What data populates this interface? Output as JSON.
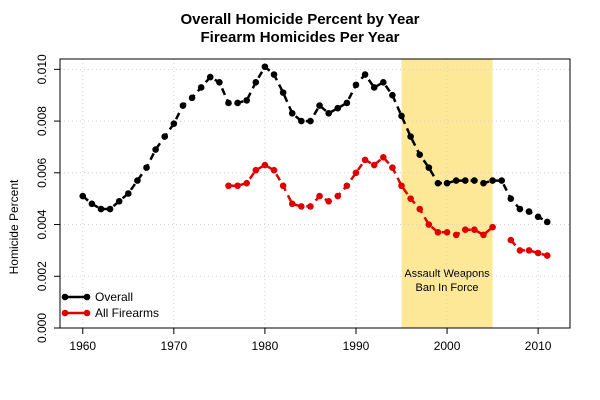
{
  "chart_data": {
    "type": "line",
    "title": "Overall Homicide Percent by Year",
    "subtitle": "Firearm Homicides Per Year",
    "ylabel": "Homicide Percent",
    "xlim": [
      1957.5,
      2013.5
    ],
    "ylim": [
      0,
      0.0104
    ],
    "xticks": [
      1960,
      1970,
      1980,
      1990,
      2000,
      2010
    ],
    "yticks": [
      0.0,
      0.002,
      0.004,
      0.006,
      0.008,
      0.01
    ],
    "grid": true,
    "legend_position": "bottom-left",
    "annotation": {
      "line1": "Assault Weapons",
      "line2": "Ban In Force",
      "x_start": 1995,
      "x_end": 2005,
      "color": "#fde898"
    },
    "series": [
      {
        "name": "Overall",
        "color": "#000000",
        "x": [
          1960,
          1961,
          1962,
          1963,
          1964,
          1965,
          1966,
          1967,
          1968,
          1969,
          1970,
          1971,
          1972,
          1973,
          1974,
          1975,
          1976,
          1977,
          1978,
          1979,
          1980,
          1981,
          1982,
          1983,
          1984,
          1985,
          1986,
          1987,
          1988,
          1989,
          1990,
          1991,
          1992,
          1993,
          1994,
          1995,
          1996,
          1997,
          1998,
          1999,
          2000,
          2001,
          2002,
          2003,
          2004,
          2005,
          2006,
          2007,
          2008,
          2009,
          2010,
          2011
        ],
        "values": [
          0.0051,
          0.0048,
          0.0046,
          0.0046,
          0.0049,
          0.0052,
          0.0057,
          0.0062,
          0.0069,
          0.0074,
          0.0079,
          0.0086,
          0.0089,
          0.0093,
          0.0097,
          0.0095,
          0.0087,
          0.0087,
          0.0088,
          0.0095,
          0.0101,
          0.0098,
          0.0091,
          0.0083,
          0.008,
          0.008,
          0.0086,
          0.0083,
          0.0085,
          0.0087,
          0.0094,
          0.0098,
          0.0093,
          0.0095,
          0.009,
          0.0082,
          0.0074,
          0.0067,
          0.0062,
          0.0056,
          0.0056,
          0.0057,
          0.0057,
          0.0057,
          0.0056,
          0.0057,
          0.0057,
          0.005,
          0.0046,
          0.0045,
          0.0043,
          0.0041
        ]
      },
      {
        "name": "All Firearms",
        "color": "#e00000",
        "x": [
          1976,
          1977,
          1978,
          1979,
          1980,
          1981,
          1982,
          1983,
          1984,
          1985,
          1986,
          1987,
          1988,
          1989,
          1990,
          1991,
          1992,
          1993,
          1994,
          1995,
          1996,
          1997,
          1998,
          1999,
          2000,
          2001,
          2002,
          2003,
          2004,
          2005,
          2007,
          2008,
          2009,
          2010,
          2011
        ],
        "values": [
          0.0055,
          0.0055,
          0.0056,
          0.0061,
          0.0063,
          0.0061,
          0.0055,
          0.0048,
          0.0047,
          0.0047,
          0.0051,
          0.0049,
          0.0051,
          0.0055,
          0.006,
          0.0065,
          0.0063,
          0.0066,
          0.0062,
          0.0055,
          0.005,
          0.0046,
          0.004,
          0.0037,
          0.0037,
          0.0036,
          0.0038,
          0.0038,
          0.0036,
          0.0039,
          0.0034,
          0.003,
          0.003,
          0.0029,
          0.0028
        ]
      }
    ]
  }
}
